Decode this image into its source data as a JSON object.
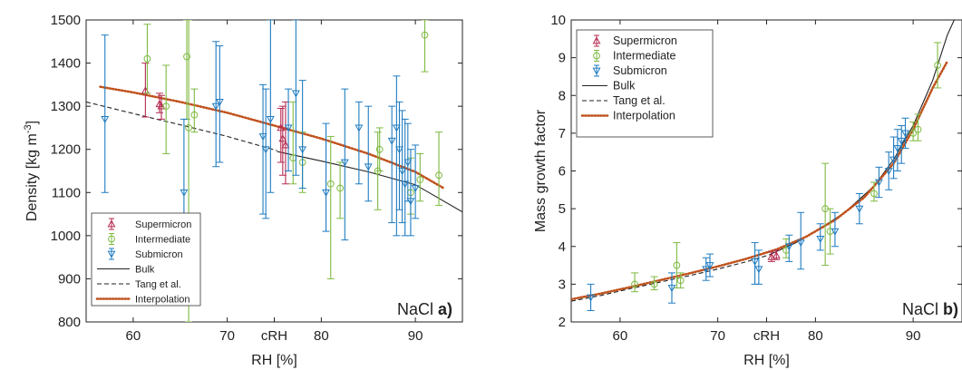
{
  "chart_data": [
    {
      "type": "scatter",
      "panel": "a",
      "xlabel": "RH [%]",
      "ylabel": "Density [kg m^-3]",
      "ylabel_parts": {
        "main": "Density [kg m",
        "sup": "-3",
        "end": "]"
      },
      "xlim": [
        55,
        95
      ],
      "ylim": [
        800,
        1500
      ],
      "xticks": [
        {
          "v": 60,
          "label": "60"
        },
        {
          "v": 70,
          "label": "70"
        },
        {
          "v": 75,
          "label": "cRH"
        },
        {
          "v": 80,
          "label": "80"
        },
        {
          "v": 90,
          "label": "90"
        }
      ],
      "yticks": [
        800,
        900,
        1000,
        1100,
        1200,
        1300,
        1400,
        1500
      ],
      "annotation": {
        "text": "NaCl",
        "bold": "a)"
      },
      "legend_position": "bottom-left",
      "series": [
        {
          "name": "Supermicron",
          "marker": "triangle-up",
          "color": "#b5294f",
          "points": [
            {
              "x": 61.3,
              "y": 1336,
              "lo": 1275,
              "hi": 1400
            },
            {
              "x": 62.8,
              "y": 1305,
              "lo": 1285,
              "hi": 1330
            },
            {
              "x": 63.0,
              "y": 1300,
              "lo": 1270,
              "hi": 1325
            },
            {
              "x": 75.7,
              "y": 1250,
              "lo": 1170,
              "hi": 1295
            },
            {
              "x": 75.9,
              "y": 1225,
              "lo": 1140,
              "hi": 1300
            },
            {
              "x": 76.2,
              "y": 1210,
              "lo": 1120,
              "hi": 1310
            }
          ]
        },
        {
          "name": "Intermediate",
          "marker": "circle",
          "color": "#7fba42",
          "points": [
            {
              "x": 61.5,
              "y": 1410,
              "lo": 1330,
              "hi": 1490
            },
            {
              "x": 63.5,
              "y": 1300,
              "lo": 1190,
              "hi": 1395
            },
            {
              "x": 65.7,
              "y": 1415,
              "lo": 1270,
              "hi": 1500
            },
            {
              "x": 65.9,
              "y": 1250,
              "lo": 800,
              "hi": 1500
            },
            {
              "x": 66.5,
              "y": 1280,
              "lo": 1240,
              "hi": 1340
            },
            {
              "x": 77.0,
              "y": 1180,
              "lo": 1120,
              "hi": 1310
            },
            {
              "x": 78.0,
              "y": 1170,
              "lo": 1100,
              "hi": 1240
            },
            {
              "x": 81.0,
              "y": 1120,
              "lo": 900,
              "hi": 1230
            },
            {
              "x": 82.0,
              "y": 1110,
              "lo": 1040,
              "hi": 1170
            },
            {
              "x": 86.0,
              "y": 1150,
              "lo": 1060,
              "hi": 1240
            },
            {
              "x": 86.2,
              "y": 1200,
              "lo": 1150,
              "hi": 1250
            },
            {
              "x": 89.5,
              "y": 1100,
              "lo": 1050,
              "hi": 1180
            },
            {
              "x": 90.5,
              "y": 1130,
              "lo": 1080,
              "hi": 1190
            },
            {
              "x": 91.0,
              "y": 1465,
              "lo": 1380,
              "hi": 1500
            },
            {
              "x": 92.5,
              "y": 1140,
              "lo": 1070,
              "hi": 1240
            }
          ]
        },
        {
          "name": "Submicron",
          "marker": "triangle-down",
          "color": "#1f7cc1",
          "points": [
            {
              "x": 57.0,
              "y": 1270,
              "lo": 1100,
              "hi": 1465
            },
            {
              "x": 65.4,
              "y": 1100,
              "lo": 1000,
              "hi": 1270
            },
            {
              "x": 68.8,
              "y": 1300,
              "lo": 1160,
              "hi": 1450
            },
            {
              "x": 69.2,
              "y": 1310,
              "lo": 1170,
              "hi": 1440
            },
            {
              "x": 73.8,
              "y": 1230,
              "lo": 1050,
              "hi": 1350
            },
            {
              "x": 74.1,
              "y": 1200,
              "lo": 1040,
              "hi": 1340
            },
            {
              "x": 74.6,
              "y": 1270,
              "lo": 1100,
              "hi": 1500
            },
            {
              "x": 76.5,
              "y": 1250,
              "lo": 1150,
              "hi": 1340
            },
            {
              "x": 77.3,
              "y": 1330,
              "lo": 1140,
              "hi": 1500
            },
            {
              "x": 78.0,
              "y": 1200,
              "lo": 1110,
              "hi": 1360
            },
            {
              "x": 80.5,
              "y": 1100,
              "lo": 1010,
              "hi": 1260
            },
            {
              "x": 82.5,
              "y": 1170,
              "lo": 990,
              "hi": 1340
            },
            {
              "x": 84.0,
              "y": 1250,
              "lo": 1120,
              "hi": 1310
            },
            {
              "x": 85.0,
              "y": 1160,
              "lo": 1080,
              "hi": 1300
            },
            {
              "x": 87.5,
              "y": 1220,
              "lo": 1030,
              "hi": 1300
            },
            {
              "x": 88.0,
              "y": 1250,
              "lo": 1000,
              "hi": 1370
            },
            {
              "x": 88.3,
              "y": 1200,
              "lo": 1060,
              "hi": 1310
            },
            {
              "x": 88.6,
              "y": 1150,
              "lo": 1030,
              "hi": 1290
            },
            {
              "x": 88.9,
              "y": 1120,
              "lo": 1000,
              "hi": 1270
            },
            {
              "x": 89.2,
              "y": 1170,
              "lo": 1080,
              "hi": 1260
            },
            {
              "x": 89.5,
              "y": 1080,
              "lo": 1000,
              "hi": 1200
            },
            {
              "x": 90.0,
              "y": 1110,
              "lo": 1040,
              "hi": 1210
            }
          ]
        }
      ],
      "curves": [
        {
          "name": "Bulk",
          "style": "solid",
          "color": "#222222",
          "points": [
            [
              75.3,
              1195
            ],
            [
              80,
              1173
            ],
            [
              85,
              1148
            ],
            [
              90,
              1118
            ],
            [
              95,
              1055
            ]
          ]
        },
        {
          "name": "Tang et al.",
          "style": "dashed",
          "color": "#222222",
          "points": [
            [
              55,
              1310
            ],
            [
              60,
              1283
            ],
            [
              65,
              1257
            ],
            [
              70,
              1230
            ],
            [
              75.3,
              1197
            ]
          ]
        },
        {
          "name": "Interpolation",
          "style": "dotted",
          "color": "#c0521d",
          "points": [
            [
              56.5,
              1345
            ],
            [
              60,
              1332
            ],
            [
              65,
              1310
            ],
            [
              70,
              1285
            ],
            [
              75,
              1255
            ],
            [
              80,
              1225
            ],
            [
              85,
              1190
            ],
            [
              90,
              1148
            ],
            [
              93,
              1110
            ]
          ]
        }
      ]
    },
    {
      "type": "scatter",
      "panel": "b",
      "xlabel": "RH [%]",
      "ylabel": "Mass growth factor",
      "xlim": [
        55,
        95
      ],
      "ylim": [
        2,
        10
      ],
      "xticks": [
        {
          "v": 60,
          "label": "60"
        },
        {
          "v": 70,
          "label": "70"
        },
        {
          "v": 75,
          "label": "cRH"
        },
        {
          "v": 80,
          "label": "80"
        },
        {
          "v": 90,
          "label": "90"
        }
      ],
      "yticks": [
        2,
        3,
        4,
        5,
        6,
        7,
        8,
        9,
        10
      ],
      "annotation": {
        "text": "NaCl",
        "bold": "b)"
      },
      "legend_position": "top-left",
      "series": [
        {
          "name": "Supermicron",
          "marker": "triangle-up",
          "color": "#b5294f",
          "points": [
            {
              "x": 75.5,
              "y": 3.72,
              "lo": 3.6,
              "hi": 3.85
            },
            {
              "x": 76.0,
              "y": 3.76,
              "lo": 3.65,
              "hi": 3.9
            }
          ]
        },
        {
          "name": "Intermediate",
          "marker": "circle",
          "color": "#7fba42",
          "points": [
            {
              "x": 61.5,
              "y": 3.0,
              "lo": 2.8,
              "hi": 3.3
            },
            {
              "x": 63.5,
              "y": 3.0,
              "lo": 2.85,
              "hi": 3.2
            },
            {
              "x": 65.8,
              "y": 3.5,
              "lo": 2.9,
              "hi": 4.1
            },
            {
              "x": 66.2,
              "y": 3.1,
              "lo": 2.9,
              "hi": 3.3
            },
            {
              "x": 77.0,
              "y": 3.9,
              "lo": 3.7,
              "hi": 4.2
            },
            {
              "x": 81.0,
              "y": 5.0,
              "lo": 3.5,
              "hi": 6.2
            },
            {
              "x": 81.5,
              "y": 4.4,
              "lo": 3.8,
              "hi": 5.0
            },
            {
              "x": 86.0,
              "y": 5.4,
              "lo": 5.2,
              "hi": 5.7
            },
            {
              "x": 90.0,
              "y": 7.0,
              "lo": 6.8,
              "hi": 7.3
            },
            {
              "x": 90.5,
              "y": 7.1,
              "lo": 6.8,
              "hi": 7.5
            },
            {
              "x": 92.5,
              "y": 8.8,
              "lo": 8.2,
              "hi": 9.4
            }
          ]
        },
        {
          "name": "Submicron",
          "marker": "triangle-down",
          "color": "#1f7cc1",
          "points": [
            {
              "x": 57.0,
              "y": 2.65,
              "lo": 2.3,
              "hi": 3.0
            },
            {
              "x": 65.3,
              "y": 2.9,
              "lo": 2.5,
              "hi": 3.3
            },
            {
              "x": 68.8,
              "y": 3.4,
              "lo": 3.1,
              "hi": 3.7
            },
            {
              "x": 69.2,
              "y": 3.5,
              "lo": 3.2,
              "hi": 3.8
            },
            {
              "x": 73.8,
              "y": 3.6,
              "lo": 3.0,
              "hi": 4.1
            },
            {
              "x": 74.2,
              "y": 3.4,
              "lo": 3.0,
              "hi": 3.9
            },
            {
              "x": 77.3,
              "y": 4.0,
              "lo": 3.6,
              "hi": 4.3
            },
            {
              "x": 78.5,
              "y": 4.1,
              "lo": 3.4,
              "hi": 4.9
            },
            {
              "x": 80.5,
              "y": 4.2,
              "lo": 3.9,
              "hi": 4.6
            },
            {
              "x": 82.0,
              "y": 4.4,
              "lo": 4.0,
              "hi": 4.9
            },
            {
              "x": 84.5,
              "y": 5.0,
              "lo": 4.6,
              "hi": 5.4
            },
            {
              "x": 86.5,
              "y": 5.7,
              "lo": 5.3,
              "hi": 6.1
            },
            {
              "x": 87.5,
              "y": 6.0,
              "lo": 5.5,
              "hi": 6.5
            },
            {
              "x": 88.0,
              "y": 6.3,
              "lo": 5.8,
              "hi": 6.9
            },
            {
              "x": 88.4,
              "y": 6.6,
              "lo": 6.0,
              "hi": 7.1
            },
            {
              "x": 88.8,
              "y": 6.8,
              "lo": 6.2,
              "hi": 7.2
            },
            {
              "x": 89.2,
              "y": 7.0,
              "lo": 6.6,
              "hi": 7.4
            }
          ]
        }
      ],
      "curves": [
        {
          "name": "Bulk",
          "style": "solid",
          "color": "#222222",
          "points": [
            [
              75.3,
              3.78
            ],
            [
              78,
              4.1
            ],
            [
              80,
              4.4
            ],
            [
              83,
              4.9
            ],
            [
              86,
              5.6
            ],
            [
              88,
              6.3
            ],
            [
              90,
              7.2
            ],
            [
              92,
              8.4
            ],
            [
              93.5,
              9.6
            ],
            [
              94.2,
              10.0
            ]
          ]
        },
        {
          "name": "Tang et al.",
          "style": "dashed",
          "color": "#222222",
          "points": [
            [
              55,
              2.55
            ],
            [
              58,
              2.7
            ],
            [
              61,
              2.88
            ],
            [
              64,
              3.05
            ],
            [
              67,
              3.22
            ],
            [
              70,
              3.4
            ],
            [
              73,
              3.6
            ],
            [
              75.3,
              3.78
            ]
          ]
        },
        {
          "name": "Interpolation",
          "style": "dotted",
          "color": "#c0521d",
          "points": [
            [
              55,
              2.6
            ],
            [
              58,
              2.75
            ],
            [
              61,
              2.92
            ],
            [
              64,
              3.1
            ],
            [
              67,
              3.28
            ],
            [
              70,
              3.47
            ],
            [
              73,
              3.68
            ],
            [
              76,
              3.92
            ],
            [
              79,
              4.25
            ],
            [
              82,
              4.7
            ],
            [
              85,
              5.3
            ],
            [
              88,
              6.2
            ],
            [
              90,
              7.1
            ],
            [
              92,
              8.2
            ],
            [
              93.5,
              8.9
            ]
          ]
        }
      ]
    }
  ]
}
